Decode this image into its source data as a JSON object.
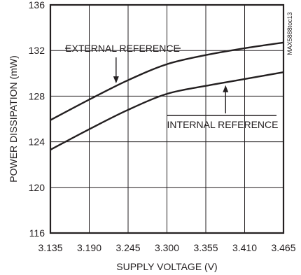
{
  "chart_data": {
    "type": "line",
    "title": "",
    "xlabel": "SUPPLY VOLTAGE (V)",
    "ylabel": "POWER DISSIPATION (mW)",
    "xlim": [
      3.135,
      3.465
    ],
    "ylim": [
      116,
      136
    ],
    "x_ticks": [
      "3.135",
      "3.190",
      "3.245",
      "3.300",
      "3.355",
      "3.410",
      "3.465"
    ],
    "y_ticks": [
      "116",
      "120",
      "124",
      "128",
      "132",
      "136"
    ],
    "grid": true,
    "legend": "none",
    "figure_code": "MAX5888toc13",
    "series": [
      {
        "name": "EXTERNAL REFERENCE",
        "x": [
          3.135,
          3.19,
          3.245,
          3.3,
          3.355,
          3.41,
          3.465
        ],
        "y": [
          125.9,
          127.7,
          129.4,
          130.8,
          131.6,
          132.2,
          132.7
        ]
      },
      {
        "name": "INTERNAL REFERENCE",
        "x": [
          3.135,
          3.19,
          3.245,
          3.3,
          3.355,
          3.41,
          3.465
        ],
        "y": [
          123.3,
          125.1,
          126.8,
          128.2,
          128.9,
          129.5,
          130.1
        ]
      }
    ],
    "annotations": [
      {
        "text": "EXTERNAL REFERENCE",
        "series": 0,
        "arrow_x": 3.228
      },
      {
        "text": "INTERNAL REFERENCE",
        "series": 1,
        "arrow_x": 3.383
      }
    ]
  }
}
